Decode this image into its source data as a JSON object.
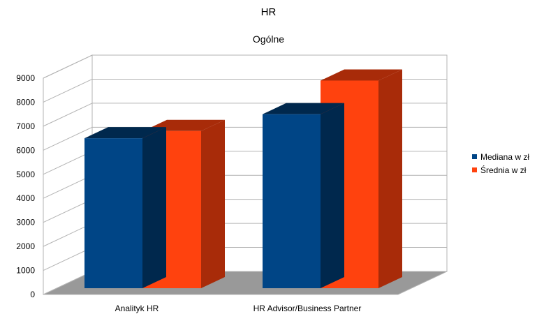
{
  "chart_data": {
    "type": "bar",
    "title": "HR",
    "subtitle": "Ogólne",
    "categories": [
      "Analityk HR",
      "HR Advisor/Business Partner"
    ],
    "series": [
      {
        "name": "Mediana w zł",
        "color": "#004586",
        "side_color": "#00284d",
        "values": [
          6500,
          7500
        ]
      },
      {
        "name": "Średnia w zł",
        "color": "#ff420e",
        "side_color": "#a82b09",
        "values": [
          6800,
          8900
        ]
      }
    ],
    "yticks": [
      "0",
      "1000",
      "2000",
      "3000",
      "4000",
      "5000",
      "6000",
      "7000",
      "8000",
      "9000"
    ],
    "ylim": [
      0,
      9000
    ],
    "grid": true,
    "legend_position": "right",
    "style": "3d"
  }
}
